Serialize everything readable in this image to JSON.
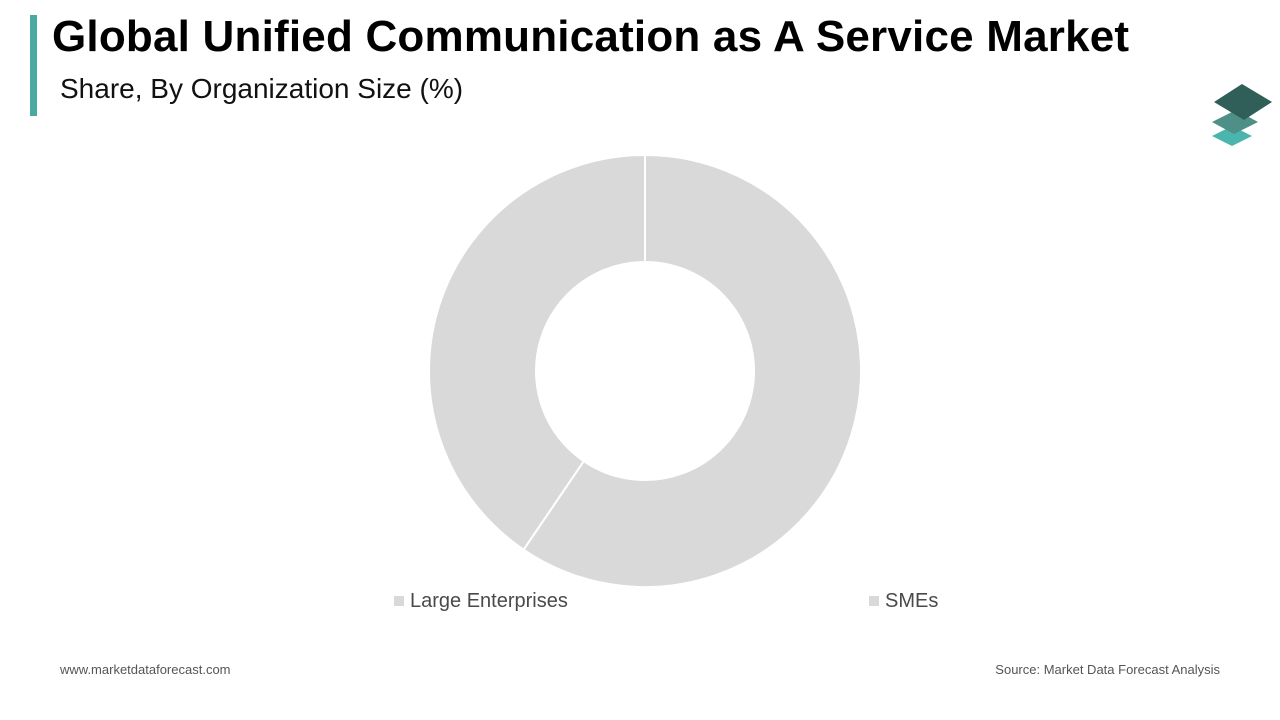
{
  "header": {
    "title": "Global Unified Communication as A Service Market",
    "subtitle": "Share, By Organization Size (%)"
  },
  "logo": {
    "icon": "stacked-layers-logo-icon"
  },
  "chart_data": {
    "type": "pie",
    "style": "donut",
    "categories": [
      "Large Enterprises",
      "SMEs"
    ],
    "values": [
      59.5,
      40.5
    ],
    "slice_color": "#d9d9d9",
    "separator_color": "#ffffff",
    "legend_position": "bottom"
  },
  "footer": {
    "website": "www.marketdataforecast.com",
    "source": "Source: Market Data Forecast Analysis"
  },
  "colors": {
    "accent": "#4aa9a0",
    "logo_dark": "#2f5f58",
    "logo_mid": "#4e8f87",
    "logo_light": "#49b5ad"
  }
}
